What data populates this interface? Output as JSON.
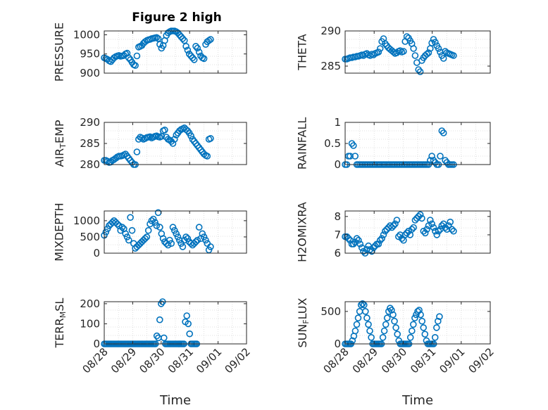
{
  "figure": {
    "title": "Figure 2 high"
  },
  "marker_color": "#0072BD",
  "chart_data": [
    {
      "type": "scatter",
      "ylabel": "PRESSURE",
      "ylim": [
        900,
        1010
      ],
      "yticks": [
        "900",
        "950",
        "1000"
      ],
      "ytick_values": [
        900,
        950,
        1000
      ],
      "xlim": [
        0,
        4.35
      ],
      "grid": true,
      "x": [
        0,
        0.05,
        0.1,
        0.15,
        0.2,
        0.25,
        0.3,
        0.35,
        0.4,
        0.45,
        0.5,
        0.55,
        0.6,
        0.65,
        0.7,
        0.75,
        0.8,
        0.85,
        0.9,
        0.95,
        1.0,
        1.05,
        1.1,
        1.15,
        1.2,
        1.25,
        1.3,
        1.35,
        1.4,
        1.45,
        1.5,
        1.55,
        1.6,
        1.65,
        1.7,
        1.75,
        1.8,
        1.85,
        1.9,
        1.95,
        2.0,
        2.05,
        2.1,
        2.15,
        2.2,
        2.25,
        2.3,
        2.35,
        2.4,
        2.45,
        2.5,
        2.55,
        2.6,
        2.65,
        2.7,
        2.75,
        2.8,
        2.85,
        2.9,
        2.95,
        3.0,
        3.05,
        3.1,
        3.15,
        3.2,
        3.25
      ],
      "y": [
        940,
        938,
        936,
        932,
        930,
        935,
        940,
        943,
        945,
        946,
        944,
        945,
        946,
        950,
        952,
        940,
        935,
        928,
        922,
        920,
        945,
        968,
        970,
        972,
        978,
        982,
        985,
        987,
        988,
        990,
        991,
        992,
        993,
        990,
        975,
        965,
        972,
        985,
        998,
        1005,
        1008,
        1010,
        1010,
        1010,
        1008,
        1005,
        1000,
        995,
        990,
        985,
        970,
        960,
        950,
        945,
        940,
        935,
        970,
        965,
        955,
        945,
        940,
        938,
        975,
        982,
        985,
        988
      ]
    },
    {
      "type": "scatter",
      "ylabel": "THETA",
      "ylim": [
        284,
        290
      ],
      "yticks": [
        "285",
        "290"
      ],
      "ytick_values": [
        285,
        290
      ],
      "xlim": [
        0,
        4.35
      ],
      "grid": true,
      "x": [
        0,
        0.05,
        0.1,
        0.15,
        0.2,
        0.25,
        0.3,
        0.35,
        0.4,
        0.45,
        0.5,
        0.55,
        0.6,
        0.65,
        0.7,
        0.75,
        0.8,
        0.85,
        0.9,
        0.95,
        1.0,
        1.05,
        1.1,
        1.15,
        1.2,
        1.25,
        1.3,
        1.35,
        1.4,
        1.45,
        1.5,
        1.55,
        1.6,
        1.65,
        1.7,
        1.75,
        1.8,
        1.85,
        1.9,
        1.95,
        2.0,
        2.05,
        2.1,
        2.15,
        2.2,
        2.25,
        2.3,
        2.35,
        2.4,
        2.45,
        2.5,
        2.55,
        2.6,
        2.65,
        2.7,
        2.75,
        2.8,
        2.85,
        2.9,
        2.95,
        3.0,
        3.05,
        3.1,
        3.15,
        3.2,
        3.25
      ],
      "y": [
        286,
        286,
        286.1,
        286.2,
        286.2,
        286.3,
        286.3,
        286.4,
        286.4,
        286.5,
        286.6,
        286.5,
        286.7,
        286.8,
        286.6,
        286.5,
        286.7,
        286.6,
        286.8,
        286.9,
        287,
        287.5,
        288.5,
        288.9,
        288.2,
        287.9,
        287.6,
        287.4,
        287.2,
        287.0,
        286.8,
        286.9,
        287.1,
        287.2,
        287.0,
        287.1,
        288.5,
        289.2,
        289.0,
        288.6,
        288.2,
        287.5,
        286.5,
        285.5,
        284.5,
        284.2,
        285.8,
        286.2,
        286.5,
        286.7,
        286.9,
        287.5,
        288.3,
        288.8,
        288.4,
        287.9,
        287.5,
        287.0,
        286.5,
        286.1,
        287.1,
        286.9,
        286.8,
        286.7,
        286.6,
        286.5
      ]
    },
    {
      "type": "scatter",
      "ylabel": "AIR_TEMP",
      "ylim": [
        280,
        290
      ],
      "yticks": [
        "280",
        "285",
        "290"
      ],
      "ytick_values": [
        280,
        285,
        290
      ],
      "xlim": [
        0,
        4.35
      ],
      "grid": true,
      "x": [
        0,
        0.05,
        0.1,
        0.15,
        0.2,
        0.25,
        0.3,
        0.35,
        0.4,
        0.45,
        0.5,
        0.55,
        0.6,
        0.65,
        0.7,
        0.75,
        0.8,
        0.85,
        0.9,
        0.95,
        1.0,
        1.05,
        1.1,
        1.15,
        1.2,
        1.25,
        1.3,
        1.35,
        1.4,
        1.45,
        1.5,
        1.55,
        1.6,
        1.65,
        1.7,
        1.75,
        1.8,
        1.85,
        1.9,
        1.95,
        2.0,
        2.05,
        2.1,
        2.15,
        2.2,
        2.25,
        2.3,
        2.35,
        2.4,
        2.45,
        2.5,
        2.55,
        2.6,
        2.65,
        2.7,
        2.75,
        2.8,
        2.85,
        2.9,
        2.95,
        3.0,
        3.05,
        3.1,
        3.15,
        3.2,
        3.25
      ],
      "y": [
        281,
        281,
        280.8,
        280.5,
        280.6,
        281,
        281.2,
        281.5,
        281.8,
        282,
        282,
        282.1,
        282.3,
        282.5,
        282,
        281.5,
        281,
        280.5,
        280,
        280,
        283,
        286,
        286.5,
        286.3,
        286,
        286.2,
        286.4,
        286.5,
        286.6,
        286.3,
        286.5,
        286.7,
        286.8,
        286.6,
        286.5,
        286.7,
        288,
        288.2,
        286.5,
        286,
        285.8,
        285.5,
        285,
        286,
        287,
        287.5,
        288,
        288.3,
        288.5,
        288.7,
        288.3,
        288,
        287.5,
        286.8,
        286,
        285.5,
        285,
        284.5,
        284,
        283.5,
        283,
        282.5,
        282.2,
        282,
        286,
        286.2
      ]
    },
    {
      "type": "scatter",
      "ylabel": "RAINFALL",
      "ylim": [
        0,
        1
      ],
      "yticks": [
        "0",
        "0.5",
        "1"
      ],
      "ytick_values": [
        0,
        0.5,
        1
      ],
      "xlim": [
        0,
        4.35
      ],
      "grid": true,
      "x": [
        0,
        0.05,
        0.1,
        0.15,
        0.2,
        0.25,
        0.3,
        0.35,
        0.4,
        0.45,
        0.5,
        0.55,
        0.6,
        0.65,
        0.7,
        0.75,
        0.8,
        0.85,
        0.9,
        0.95,
        1.0,
        1.05,
        1.1,
        1.15,
        1.2,
        1.25,
        1.3,
        1.35,
        1.4,
        1.45,
        1.5,
        1.55,
        1.6,
        1.65,
        1.7,
        1.75,
        1.8,
        1.85,
        1.9,
        1.95,
        2.0,
        2.05,
        2.1,
        2.15,
        2.2,
        2.25,
        2.3,
        2.35,
        2.4,
        2.45,
        2.5,
        2.55,
        2.6,
        2.65,
        2.7,
        2.75,
        2.8,
        2.85,
        2.9,
        2.95,
        3.0,
        3.05,
        3.1,
        3.15,
        3.2,
        3.25
      ],
      "y": [
        0,
        0,
        0.2,
        0.2,
        0.5,
        0.45,
        0.2,
        0,
        0,
        0,
        0,
        0,
        0,
        0,
        0,
        0,
        0,
        0,
        0,
        0,
        0,
        0,
        0,
        0,
        0,
        0,
        0,
        0,
        0,
        0,
        0,
        0,
        0,
        0,
        0,
        0,
        0,
        0,
        0,
        0,
        0,
        0,
        0,
        0,
        0,
        0,
        0,
        0,
        0,
        0,
        0,
        0.1,
        0.2,
        0.1,
        0.05,
        0,
        0,
        0.2,
        0.8,
        0.75,
        0.1,
        0.05,
        0,
        0,
        0,
        0
      ]
    },
    {
      "type": "scatter",
      "ylabel": "MIXDEPTH",
      "ylim": [
        0,
        1300
      ],
      "yticks": [
        "0",
        "500",
        "1000"
      ],
      "ytick_values": [
        0,
        500,
        1000
      ],
      "xlim": [
        0,
        4.35
      ],
      "grid": true,
      "x": [
        0,
        0.05,
        0.1,
        0.15,
        0.2,
        0.25,
        0.3,
        0.35,
        0.4,
        0.45,
        0.5,
        0.55,
        0.6,
        0.65,
        0.7,
        0.75,
        0.8,
        0.85,
        0.9,
        0.95,
        1.0,
        1.05,
        1.1,
        1.15,
        1.2,
        1.25,
        1.3,
        1.35,
        1.4,
        1.45,
        1.5,
        1.55,
        1.6,
        1.65,
        1.7,
        1.75,
        1.8,
        1.85,
        1.9,
        1.95,
        2.0,
        2.05,
        2.1,
        2.15,
        2.2,
        2.25,
        2.3,
        2.35,
        2.4,
        2.45,
        2.5,
        2.55,
        2.6,
        2.65,
        2.7,
        2.75,
        2.8,
        2.85,
        2.9,
        2.95,
        3.0,
        3.05,
        3.1,
        3.15,
        3.2,
        3.25
      ],
      "y": [
        550,
        650,
        750,
        850,
        900,
        950,
        1000,
        950,
        900,
        850,
        700,
        800,
        750,
        600,
        500,
        400,
        1100,
        700,
        300,
        150,
        200,
        250,
        300,
        350,
        400,
        450,
        500,
        700,
        900,
        1000,
        1050,
        950,
        850,
        1250,
        800,
        600,
        450,
        350,
        300,
        250,
        400,
        300,
        800,
        700,
        600,
        500,
        400,
        300,
        200,
        400,
        500,
        450,
        350,
        300,
        250,
        300,
        350,
        400,
        800,
        450,
        600,
        500,
        400,
        300,
        100,
        200
      ]
    },
    {
      "type": "scatter",
      "ylabel": "H2OMIXRA",
      "ylim": [
        6,
        8.3
      ],
      "yticks": [
        "6",
        "7",
        "8"
      ],
      "ytick_values": [
        6,
        7,
        8
      ],
      "xlim": [
        0,
        4.35
      ],
      "grid": true,
      "x": [
        0,
        0.05,
        0.1,
        0.15,
        0.2,
        0.25,
        0.3,
        0.35,
        0.4,
        0.45,
        0.5,
        0.55,
        0.6,
        0.65,
        0.7,
        0.75,
        0.8,
        0.85,
        0.9,
        0.95,
        1.0,
        1.05,
        1.1,
        1.15,
        1.2,
        1.25,
        1.3,
        1.35,
        1.4,
        1.45,
        1.5,
        1.55,
        1.6,
        1.65,
        1.7,
        1.75,
        1.8,
        1.85,
        1.9,
        1.95,
        2.0,
        2.05,
        2.1,
        2.15,
        2.2,
        2.25,
        2.3,
        2.35,
        2.4,
        2.45,
        2.5,
        2.55,
        2.6,
        2.65,
        2.7,
        2.75,
        2.8,
        2.85,
        2.9,
        2.95,
        3.0,
        3.05,
        3.1,
        3.15,
        3.2,
        3.25
      ],
      "y": [
        6.9,
        6.9,
        6.8,
        6.7,
        6.5,
        6.5,
        6.6,
        6.8,
        6.7,
        6.5,
        6.3,
        6.1,
        6.0,
        6.2,
        6.4,
        6.2,
        6.1,
        6.3,
        6.4,
        6.5,
        6.5,
        6.7,
        6.8,
        7.0,
        7.2,
        7.3,
        7.4,
        7.5,
        7.4,
        7.5,
        7.6,
        7.8,
        6.9,
        7.0,
        6.8,
        6.7,
        7.0,
        7.1,
        7.2,
        7.0,
        7.3,
        7.4,
        7.8,
        7.9,
        8.0,
        8.1,
        7.9,
        7.2,
        7.1,
        7.3,
        7.5,
        7.8,
        7.6,
        7.4,
        7.2,
        7.0,
        7.2,
        7.3,
        7.5,
        7.6,
        7.4,
        7.3,
        7.5,
        7.7,
        7.3,
        7.2
      ]
    },
    {
      "type": "scatter",
      "ylabel": "TERR_MSL",
      "ylim": [
        0,
        210
      ],
      "yticks": [
        "0",
        "100",
        "200"
      ],
      "ytick_values": [
        0,
        100,
        200
      ],
      "xlabel": "Time",
      "xlim": [
        0,
        5
      ],
      "xticks": [
        "08/28",
        "08/29",
        "08/30",
        "08/31",
        "09/01",
        "09/02"
      ],
      "xtick_values": [
        0,
        1,
        2,
        3,
        4,
        5
      ],
      "grid": true,
      "x": [
        0,
        0.05,
        0.1,
        0.15,
        0.2,
        0.25,
        0.3,
        0.35,
        0.4,
        0.45,
        0.5,
        0.55,
        0.6,
        0.65,
        0.7,
        0.75,
        0.8,
        0.85,
        0.9,
        0.95,
        1.0,
        1.05,
        1.1,
        1.15,
        1.2,
        1.25,
        1.3,
        1.35,
        1.4,
        1.45,
        1.5,
        1.55,
        1.6,
        1.65,
        1.7,
        1.75,
        1.8,
        1.85,
        1.9,
        1.95,
        2.0,
        2.05,
        2.1,
        2.15,
        2.2,
        2.25,
        2.3,
        2.35,
        2.4,
        2.45,
        2.5,
        2.55,
        2.6,
        2.65,
        2.7,
        2.75,
        2.8,
        2.85,
        2.9,
        2.95,
        3.0,
        3.05,
        3.1,
        3.15,
        3.2,
        3.25
      ],
      "y": [
        0,
        0,
        0,
        0,
        0,
        0,
        0,
        0,
        0,
        0,
        0,
        0,
        0,
        0,
        0,
        0,
        0,
        0,
        0,
        0,
        0,
        0,
        0,
        0,
        0,
        0,
        0,
        0,
        0,
        0,
        0,
        0,
        0,
        0,
        0,
        0,
        0,
        40,
        30,
        120,
        200,
        210,
        30,
        0,
        0,
        0,
        0,
        0,
        0,
        0,
        0,
        0,
        0,
        0,
        0,
        0,
        0,
        110,
        140,
        100,
        50,
        0,
        0,
        0,
        0,
        0
      ]
    },
    {
      "type": "scatter",
      "ylabel": "SUN_FLUX",
      "ylim": [
        0,
        650
      ],
      "yticks": [
        "0",
        "500"
      ],
      "ytick_values": [
        0,
        500
      ],
      "xlabel": "Time",
      "xlim": [
        0,
        5
      ],
      "xticks": [
        "08/28",
        "08/29",
        "08/30",
        "08/31",
        "09/01",
        "09/02"
      ],
      "xtick_values": [
        0,
        1,
        2,
        3,
        4,
        5
      ],
      "grid": true,
      "x": [
        0,
        0.05,
        0.1,
        0.15,
        0.2,
        0.25,
        0.3,
        0.35,
        0.4,
        0.45,
        0.5,
        0.55,
        0.6,
        0.65,
        0.7,
        0.75,
        0.8,
        0.85,
        0.9,
        0.95,
        1.0,
        1.05,
        1.1,
        1.15,
        1.2,
        1.25,
        1.3,
        1.35,
        1.4,
        1.45,
        1.5,
        1.55,
        1.6,
        1.65,
        1.7,
        1.75,
        1.8,
        1.85,
        1.9,
        1.95,
        2.0,
        2.05,
        2.1,
        2.15,
        2.2,
        2.25,
        2.3,
        2.35,
        2.4,
        2.45,
        2.5,
        2.55,
        2.6,
        2.65,
        2.7,
        2.75,
        2.8,
        2.85,
        2.9,
        2.95,
        3.0,
        3.05,
        3.1,
        3.15,
        3.2,
        3.25
      ],
      "y": [
        0,
        0,
        0,
        0,
        0,
        50,
        120,
        200,
        300,
        400,
        500,
        600,
        620,
        600,
        500,
        400,
        300,
        200,
        100,
        0,
        0,
        0,
        0,
        0,
        0,
        0,
        100,
        200,
        300,
        400,
        500,
        550,
        520,
        450,
        350,
        250,
        150,
        50,
        0,
        0,
        0,
        0,
        0,
        0,
        0,
        100,
        200,
        300,
        400,
        450,
        500,
        520,
        450,
        350,
        250,
        150,
        50,
        0,
        0,
        0,
        0,
        0,
        100,
        250,
        350,
        420
      ]
    }
  ]
}
